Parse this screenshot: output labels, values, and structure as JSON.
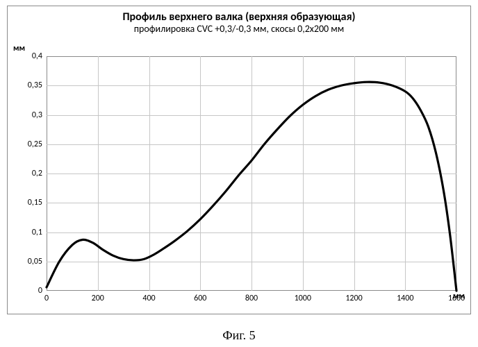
{
  "chart": {
    "type": "line",
    "title": "Профиль верхнего валка (верхняя образующая)",
    "subtitle": "профилировка CVC +0,3/-0,3 мм, скосы 0,2x200 мм",
    "title_fontsize": 16,
    "subtitle_fontsize": 14,
    "y_unit": "мм",
    "x_unit": "мм",
    "xlim": [
      0,
      1600
    ],
    "ylim": [
      0,
      0.4
    ],
    "xtick_step": 200,
    "ytick_step": 0.05,
    "xticks": [
      0,
      200,
      400,
      600,
      800,
      1000,
      1200,
      1400,
      1600
    ],
    "yticks": [
      0,
      0.05,
      0.1,
      0.15,
      0.2,
      0.25,
      0.3,
      0.35,
      0.4
    ],
    "ytick_labels": [
      "0",
      "0,05",
      "0,1",
      "0,15",
      "0,2",
      "0,25",
      "0,3",
      "0,35",
      "0,4"
    ],
    "xtick_labels": [
      "0",
      "200",
      "400",
      "600",
      "800",
      "1000",
      "1200",
      "1400",
      "1600"
    ],
    "background_color": "#ffffff",
    "grid_color": "#c6c6c6",
    "border_color": "#8a8a8a",
    "line_color": "#000000",
    "line_width": 3.2,
    "data": [
      [
        0,
        0.006
      ],
      [
        50,
        0.05
      ],
      [
        100,
        0.078
      ],
      [
        140,
        0.087
      ],
      [
        180,
        0.082
      ],
      [
        220,
        0.07
      ],
      [
        260,
        0.06
      ],
      [
        300,
        0.054
      ],
      [
        340,
        0.052
      ],
      [
        380,
        0.054
      ],
      [
        420,
        0.062
      ],
      [
        460,
        0.073
      ],
      [
        500,
        0.085
      ],
      [
        550,
        0.102
      ],
      [
        600,
        0.122
      ],
      [
        650,
        0.145
      ],
      [
        700,
        0.17
      ],
      [
        750,
        0.197
      ],
      [
        800,
        0.222
      ],
      [
        850,
        0.25
      ],
      [
        900,
        0.275
      ],
      [
        950,
        0.298
      ],
      [
        1000,
        0.317
      ],
      [
        1050,
        0.332
      ],
      [
        1100,
        0.343
      ],
      [
        1150,
        0.35
      ],
      [
        1200,
        0.354
      ],
      [
        1250,
        0.356
      ],
      [
        1300,
        0.355
      ],
      [
        1350,
        0.35
      ],
      [
        1400,
        0.34
      ],
      [
        1430,
        0.328
      ],
      [
        1460,
        0.308
      ],
      [
        1490,
        0.28
      ],
      [
        1520,
        0.235
      ],
      [
        1550,
        0.17
      ],
      [
        1575,
        0.095
      ],
      [
        1600,
        0.0
      ]
    ]
  },
  "caption": "Фиг. 5"
}
